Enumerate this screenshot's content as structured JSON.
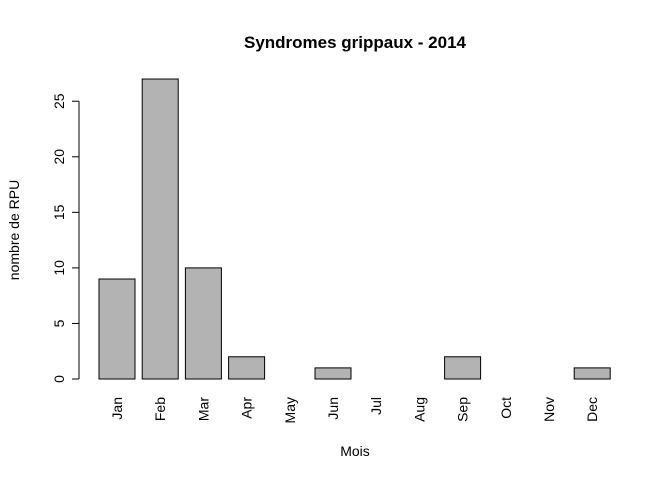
{
  "chart_data": {
    "type": "bar",
    "title": "Syndromes grippaux - 2014",
    "xlabel": "Mois",
    "ylabel": "nombre de RPU",
    "categories": [
      "Jan",
      "Feb",
      "Mar",
      "Apr",
      "May",
      "Jun",
      "Jul",
      "Aug",
      "Sep",
      "Oct",
      "Nov",
      "Dec"
    ],
    "values": [
      9,
      27,
      10,
      2,
      0,
      1,
      0,
      0,
      2,
      0,
      0,
      1
    ],
    "yticks": [
      0,
      5,
      10,
      15,
      20,
      25
    ],
    "ylim": [
      0,
      27
    ],
    "grid": false,
    "legend": "none",
    "bar_color": "#b3b3b3",
    "bar_border_color": "#000000"
  }
}
